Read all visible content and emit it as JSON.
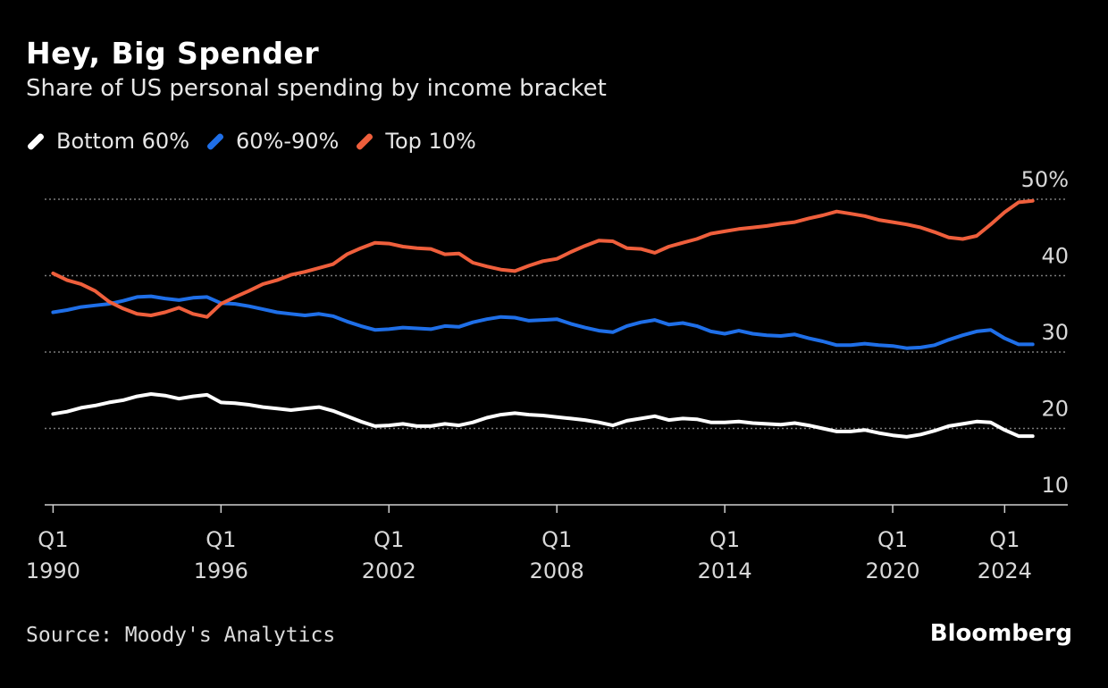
{
  "header": {
    "title": "Hey, Big Spender",
    "subtitle": "Share of US personal spending by income bracket"
  },
  "footer": {
    "source": "Source: Moody's Analytics",
    "brand": "Bloomberg"
  },
  "colors": {
    "background": "#000000",
    "bottom60": "#ffffff",
    "mid": "#1f6fe8",
    "top10": "#ef5f3c",
    "grid": "#7a7a7a",
    "axis": "#cfcfcf"
  },
  "chart_data": {
    "type": "line",
    "title": "Hey, Big Spender",
    "subtitle": "Share of US personal spending by income bracket",
    "xlabel": "",
    "ylabel": "",
    "xlim": [
      1989.7,
      2024.5
    ],
    "ylim": [
      10,
      50
    ],
    "y_ticks": [
      10,
      20,
      30,
      40,
      50
    ],
    "y_tick_labels": [
      "10",
      "20",
      "30",
      "40",
      "50%"
    ],
    "x_ticks": [
      1990,
      1996,
      2002,
      2008,
      2014,
      2020,
      2024
    ],
    "x_tick_labels": [
      [
        "Q1",
        "1990"
      ],
      [
        "Q1",
        "1996"
      ],
      [
        "Q1",
        "2002"
      ],
      [
        "Q1",
        "2008"
      ],
      [
        "Q1",
        "2014"
      ],
      [
        "Q1",
        "2020"
      ],
      [
        "Q1",
        "2024"
      ]
    ],
    "grid": true,
    "legend_position": "top-left",
    "series": [
      {
        "name": "Bottom 60%",
        "color": "#ffffff",
        "points": [
          [
            1990,
            21.9
          ],
          [
            1990.5,
            22.2
          ],
          [
            1991,
            22.7
          ],
          [
            1991.5,
            23.0
          ],
          [
            1992,
            23.4
          ],
          [
            1992.5,
            23.7
          ],
          [
            1993,
            24.2
          ],
          [
            1993.5,
            24.5
          ],
          [
            1994,
            24.3
          ],
          [
            1994.5,
            23.9
          ],
          [
            1995,
            24.2
          ],
          [
            1995.5,
            24.4
          ],
          [
            1996,
            23.4
          ],
          [
            1996.5,
            23.3
          ],
          [
            1997,
            23.1
          ],
          [
            1997.5,
            22.8
          ],
          [
            1998,
            22.6
          ],
          [
            1998.5,
            22.4
          ],
          [
            1999,
            22.6
          ],
          [
            1999.5,
            22.8
          ],
          [
            2000,
            22.3
          ],
          [
            2000.5,
            21.6
          ],
          [
            2001,
            20.9
          ],
          [
            2001.5,
            20.3
          ],
          [
            2002,
            20.4
          ],
          [
            2002.5,
            20.6
          ],
          [
            2003,
            20.3
          ],
          [
            2003.5,
            20.3
          ],
          [
            2004,
            20.6
          ],
          [
            2004.5,
            20.4
          ],
          [
            2005,
            20.8
          ],
          [
            2005.5,
            21.4
          ],
          [
            2006,
            21.8
          ],
          [
            2006.5,
            22.0
          ],
          [
            2007,
            21.8
          ],
          [
            2007.5,
            21.7
          ],
          [
            2008,
            21.5
          ],
          [
            2008.5,
            21.3
          ],
          [
            2009,
            21.1
          ],
          [
            2009.5,
            20.8
          ],
          [
            2010,
            20.4
          ],
          [
            2010.5,
            21.0
          ],
          [
            2011,
            21.3
          ],
          [
            2011.5,
            21.6
          ],
          [
            2012,
            21.1
          ],
          [
            2012.5,
            21.3
          ],
          [
            2013,
            21.2
          ],
          [
            2013.5,
            20.8
          ],
          [
            2014,
            20.8
          ],
          [
            2014.5,
            20.9
          ],
          [
            2015,
            20.7
          ],
          [
            2015.5,
            20.6
          ],
          [
            2016,
            20.5
          ],
          [
            2016.5,
            20.7
          ],
          [
            2017,
            20.4
          ],
          [
            2017.5,
            20.0
          ],
          [
            2018,
            19.6
          ],
          [
            2018.5,
            19.6
          ],
          [
            2019,
            19.8
          ],
          [
            2019.5,
            19.4
          ],
          [
            2020,
            19.1
          ],
          [
            2020.5,
            18.9
          ],
          [
            2021,
            19.2
          ],
          [
            2021.5,
            19.7
          ],
          [
            2022,
            20.3
          ],
          [
            2022.5,
            20.6
          ],
          [
            2023,
            20.9
          ],
          [
            2023.5,
            20.8
          ],
          [
            2024,
            19.8
          ],
          [
            2024.5,
            19.0
          ],
          [
            2025,
            19.0
          ]
        ]
      },
      {
        "name": "60%-90%",
        "color": "#1f6fe8",
        "points": [
          [
            1990,
            35.2
          ],
          [
            1990.5,
            35.5
          ],
          [
            1991,
            35.9
          ],
          [
            1991.5,
            36.1
          ],
          [
            1992,
            36.3
          ],
          [
            1992.5,
            36.7
          ],
          [
            1993,
            37.2
          ],
          [
            1993.5,
            37.3
          ],
          [
            1994,
            37.0
          ],
          [
            1994.5,
            36.8
          ],
          [
            1995,
            37.1
          ],
          [
            1995.5,
            37.2
          ],
          [
            1996,
            36.4
          ],
          [
            1996.5,
            36.3
          ],
          [
            1997,
            36.0
          ],
          [
            1997.5,
            35.6
          ],
          [
            1998,
            35.2
          ],
          [
            1998.5,
            35.0
          ],
          [
            1999,
            34.8
          ],
          [
            1999.5,
            35.0
          ],
          [
            2000,
            34.7
          ],
          [
            2000.5,
            34.0
          ],
          [
            2001,
            33.4
          ],
          [
            2001.5,
            32.9
          ],
          [
            2002,
            33.0
          ],
          [
            2002.5,
            33.2
          ],
          [
            2003,
            33.1
          ],
          [
            2003.5,
            33.0
          ],
          [
            2004,
            33.4
          ],
          [
            2004.5,
            33.3
          ],
          [
            2005,
            33.9
          ],
          [
            2005.5,
            34.3
          ],
          [
            2006,
            34.6
          ],
          [
            2006.5,
            34.5
          ],
          [
            2007,
            34.1
          ],
          [
            2007.5,
            34.2
          ],
          [
            2008,
            34.3
          ],
          [
            2008.5,
            33.7
          ],
          [
            2009,
            33.2
          ],
          [
            2009.5,
            32.8
          ],
          [
            2010,
            32.6
          ],
          [
            2010.5,
            33.4
          ],
          [
            2011,
            33.9
          ],
          [
            2011.5,
            34.2
          ],
          [
            2012,
            33.6
          ],
          [
            2012.5,
            33.8
          ],
          [
            2013,
            33.4
          ],
          [
            2013.5,
            32.7
          ],
          [
            2014,
            32.4
          ],
          [
            2014.5,
            32.8
          ],
          [
            2015,
            32.4
          ],
          [
            2015.5,
            32.2
          ],
          [
            2016,
            32.1
          ],
          [
            2016.5,
            32.3
          ],
          [
            2017,
            31.8
          ],
          [
            2017.5,
            31.4
          ],
          [
            2018,
            30.9
          ],
          [
            2018.5,
            30.9
          ],
          [
            2019,
            31.1
          ],
          [
            2019.5,
            30.9
          ],
          [
            2020,
            30.8
          ],
          [
            2020.5,
            30.5
          ],
          [
            2021,
            30.6
          ],
          [
            2021.5,
            30.9
          ],
          [
            2022,
            31.6
          ],
          [
            2022.5,
            32.2
          ],
          [
            2023,
            32.7
          ],
          [
            2023.5,
            32.9
          ],
          [
            2024,
            31.8
          ],
          [
            2024.5,
            31.0
          ],
          [
            2025,
            31.0
          ]
        ]
      },
      {
        "name": "Top 10%",
        "color": "#ef5f3c",
        "points": [
          [
            1990,
            40.3
          ],
          [
            1990.5,
            39.4
          ],
          [
            1991,
            38.9
          ],
          [
            1991.5,
            38.0
          ],
          [
            1992,
            36.6
          ],
          [
            1992.5,
            35.7
          ],
          [
            1993,
            35.0
          ],
          [
            1993.5,
            34.8
          ],
          [
            1994,
            35.2
          ],
          [
            1994.5,
            35.8
          ],
          [
            1995,
            35.0
          ],
          [
            1995.5,
            34.6
          ],
          [
            1996,
            36.3
          ],
          [
            1996.5,
            37.2
          ],
          [
            1997,
            38.0
          ],
          [
            1997.5,
            38.9
          ],
          [
            1998,
            39.4
          ],
          [
            1998.5,
            40.1
          ],
          [
            1999,
            40.5
          ],
          [
            1999.5,
            41.0
          ],
          [
            2000,
            41.5
          ],
          [
            2000.5,
            42.8
          ],
          [
            2001,
            43.6
          ],
          [
            2001.5,
            44.3
          ],
          [
            2002,
            44.2
          ],
          [
            2002.5,
            43.8
          ],
          [
            2003,
            43.6
          ],
          [
            2003.5,
            43.5
          ],
          [
            2004,
            42.8
          ],
          [
            2004.5,
            42.9
          ],
          [
            2005,
            41.7
          ],
          [
            2005.5,
            41.2
          ],
          [
            2006,
            40.8
          ],
          [
            2006.5,
            40.6
          ],
          [
            2007,
            41.3
          ],
          [
            2007.5,
            41.9
          ],
          [
            2008,
            42.2
          ],
          [
            2008.5,
            43.1
          ],
          [
            2009,
            43.9
          ],
          [
            2009.5,
            44.6
          ],
          [
            2010,
            44.5
          ],
          [
            2010.5,
            43.6
          ],
          [
            2011,
            43.5
          ],
          [
            2011.5,
            43.0
          ],
          [
            2012,
            43.8
          ],
          [
            2012.5,
            44.3
          ],
          [
            2013,
            44.8
          ],
          [
            2013.5,
            45.5
          ],
          [
            2014,
            45.8
          ],
          [
            2014.5,
            46.1
          ],
          [
            2015,
            46.3
          ],
          [
            2015.5,
            46.5
          ],
          [
            2016,
            46.8
          ],
          [
            2016.5,
            47.0
          ],
          [
            2017,
            47.5
          ],
          [
            2017.5,
            47.9
          ],
          [
            2018,
            48.4
          ],
          [
            2018.5,
            48.1
          ],
          [
            2019,
            47.8
          ],
          [
            2019.5,
            47.3
          ],
          [
            2020,
            47.0
          ],
          [
            2020.5,
            46.7
          ],
          [
            2021,
            46.3
          ],
          [
            2021.5,
            45.7
          ],
          [
            2022,
            45.0
          ],
          [
            2022.5,
            44.8
          ],
          [
            2023,
            45.2
          ],
          [
            2023.5,
            46.7
          ],
          [
            2024,
            48.3
          ],
          [
            2024.5,
            49.6
          ],
          [
            2025,
            49.8
          ]
        ]
      }
    ]
  }
}
